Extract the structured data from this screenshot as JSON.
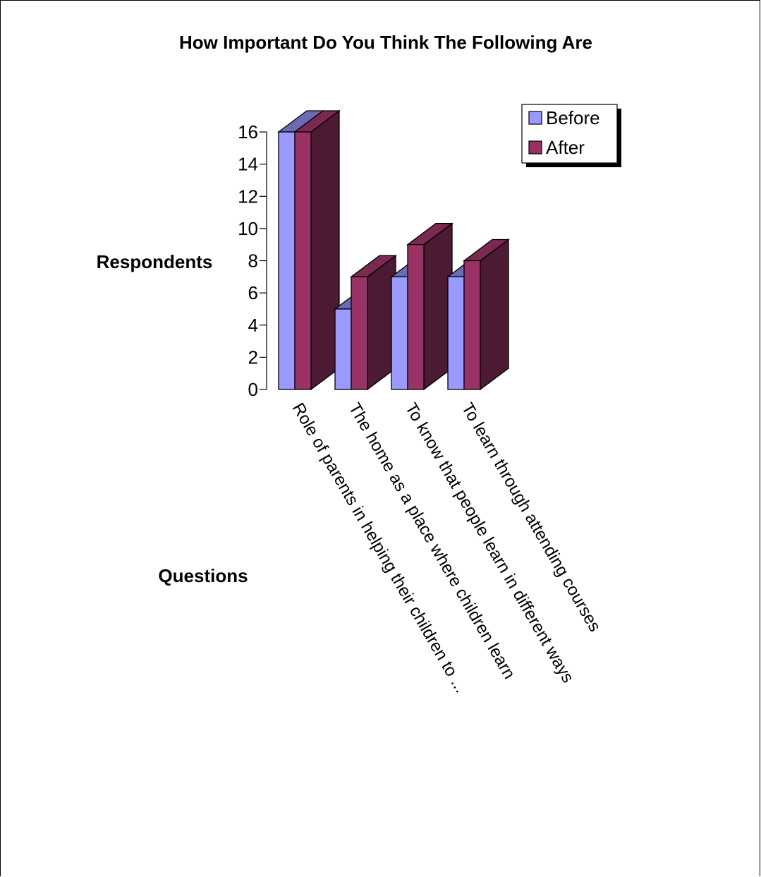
{
  "chart_data": {
    "type": "bar",
    "title": "How Important Do You Think The Following Are",
    "xlabel": "Questions",
    "ylabel": "Respondents",
    "categories": [
      "Role of parents in helping their children to ...",
      "The home as a place where children learn",
      "To know that people learn in different ways",
      "To learn through attending courses"
    ],
    "series": [
      {
        "name": "Before",
        "values": [
          16,
          5,
          7,
          7
        ]
      },
      {
        "name": "After",
        "values": [
          16,
          7,
          9,
          8
        ]
      }
    ],
    "ylim": [
      0,
      16
    ],
    "yticks": [
      "0",
      "2",
      "4",
      "6",
      "8",
      "10",
      "12",
      "14",
      "16"
    ],
    "grid": false,
    "legend_position": "top-right",
    "colors": {
      "before_front": "#9999ff",
      "before_top": "#6b6bb3",
      "after_front": "#993366",
      "after_top": "#7a2952",
      "after_side": "#4d1a33"
    }
  }
}
